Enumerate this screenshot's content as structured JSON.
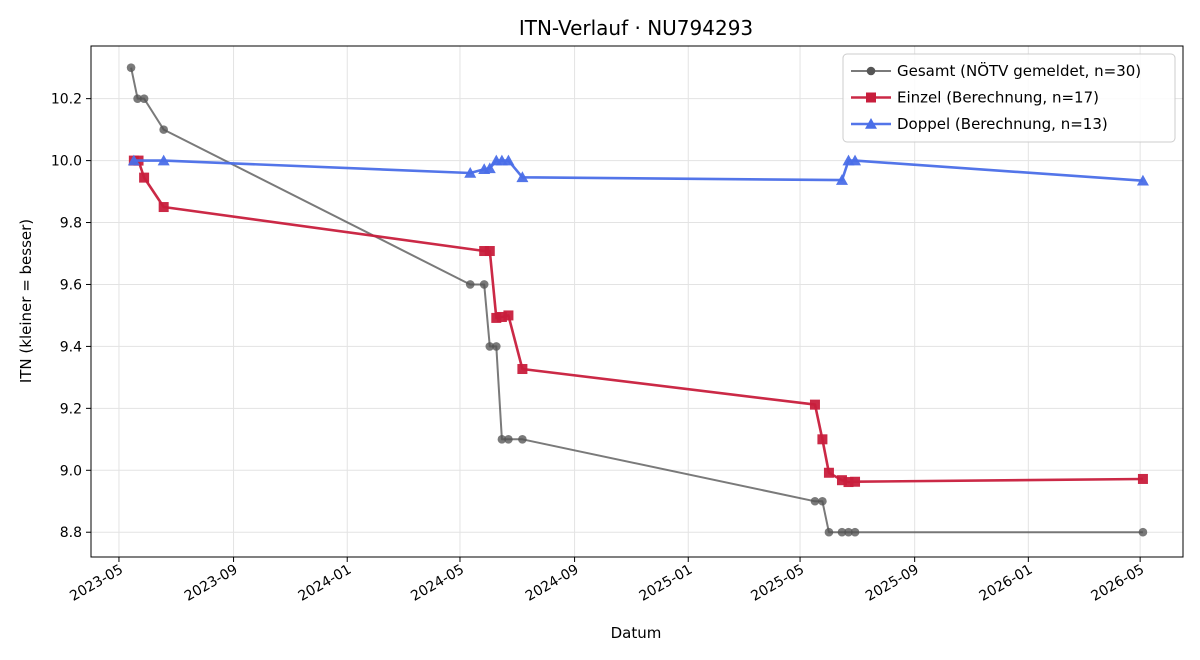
{
  "chart_data": {
    "type": "line",
    "title": "ITN-Verlauf · NU794293",
    "xlabel": "Datum",
    "ylabel": "ITN  (kleiner = besser)",
    "x_type": "date",
    "xlim": [
      "2023-04-01",
      "2026-06-16"
    ],
    "ylim": [
      8.72,
      10.37
    ],
    "x_ticks": [
      "2023-05-01",
      "2023-09-01",
      "2024-01-01",
      "2024-05-01",
      "2024-09-01",
      "2025-01-01",
      "2025-05-01",
      "2025-09-01",
      "2026-01-01",
      "2026-05-01"
    ],
    "x_tick_labels": [
      "2023-05",
      "2023-09",
      "2024-01",
      "2024-05",
      "2024-09",
      "2025-01",
      "2025-05",
      "2025-09",
      "2026-01",
      "2026-05"
    ],
    "y_ticks": [
      8.8,
      9.0,
      9.2,
      9.4,
      9.6,
      9.8,
      10.0,
      10.2
    ],
    "y_tick_labels": [
      "8.8",
      "9.0",
      "9.2",
      "9.4",
      "9.6",
      "9.8",
      "10.0",
      "10.2"
    ],
    "grid": true,
    "legend_position": "top-right",
    "series": [
      {
        "name": "Gesamt (NÖTV gemeldet, n=30)",
        "color": "#555555",
        "marker": "circle",
        "points": [
          [
            "2023-05-14",
            10.3
          ],
          [
            "2023-05-21",
            10.2
          ],
          [
            "2023-05-28",
            10.2
          ],
          [
            "2023-06-18",
            10.1
          ],
          [
            "2024-05-12",
            9.6
          ],
          [
            "2024-05-27",
            9.6
          ],
          [
            "2024-06-02",
            9.4
          ],
          [
            "2024-06-09",
            9.4
          ],
          [
            "2024-06-15",
            9.1
          ],
          [
            "2024-06-22",
            9.1
          ],
          [
            "2024-07-07",
            9.1
          ],
          [
            "2025-05-17",
            8.9
          ],
          [
            "2025-05-25",
            8.9
          ],
          [
            "2025-06-01",
            8.8
          ],
          [
            "2025-06-15",
            8.8
          ],
          [
            "2025-06-22",
            8.8
          ],
          [
            "2025-06-29",
            8.8
          ],
          [
            "2026-05-04",
            8.8
          ]
        ]
      },
      {
        "name": "Einzel (Berechnung, n=17)",
        "color": "#c81e3c",
        "marker": "square",
        "points": [
          [
            "2023-05-17",
            10.0
          ],
          [
            "2023-05-22",
            10.0
          ],
          [
            "2023-05-28",
            9.945
          ],
          [
            "2023-06-18",
            9.85
          ],
          [
            "2024-05-27",
            9.708
          ],
          [
            "2024-06-02",
            9.708
          ],
          [
            "2024-06-09",
            9.492
          ],
          [
            "2024-06-15",
            9.495
          ],
          [
            "2024-06-22",
            9.5
          ],
          [
            "2024-07-07",
            9.327
          ],
          [
            "2025-05-17",
            9.212
          ],
          [
            "2025-05-25",
            9.1
          ],
          [
            "2025-06-01",
            8.992
          ],
          [
            "2025-06-15",
            8.968
          ],
          [
            "2025-06-22",
            8.962
          ],
          [
            "2025-06-29",
            8.963
          ],
          [
            "2026-05-04",
            8.972
          ]
        ]
      },
      {
        "name": "Doppel (Berechnung, n=13)",
        "color": "#4a6ee8",
        "marker": "triangle",
        "points": [
          [
            "2023-05-17",
            10.0
          ],
          [
            "2023-06-18",
            10.0
          ],
          [
            "2024-05-12",
            9.96
          ],
          [
            "2024-05-27",
            9.972
          ],
          [
            "2024-06-02",
            9.975
          ],
          [
            "2024-06-09",
            10.0
          ],
          [
            "2024-06-15",
            10.0
          ],
          [
            "2024-06-22",
            10.0
          ],
          [
            "2024-07-07",
            9.946
          ],
          [
            "2025-06-15",
            9.937
          ],
          [
            "2025-06-22",
            10.0
          ],
          [
            "2025-06-29",
            10.0
          ],
          [
            "2026-05-04",
            9.935
          ]
        ]
      }
    ]
  }
}
